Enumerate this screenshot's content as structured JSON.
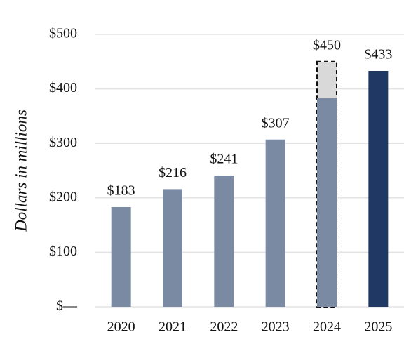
{
  "chart_data": {
    "type": "bar",
    "y_label": "Dollars in millions",
    "categories": [
      "2020",
      "2021",
      "2022",
      "2023",
      "2024",
      "2025"
    ],
    "series": [
      {
        "values": [
          null,
          null,
          null,
          null,
          450,
          null
        ],
        "value_labels": [
          null,
          null,
          null,
          null,
          "$450",
          null
        ],
        "color": "#d9d9d9",
        "dashed": true
      },
      {
        "values": [
          183,
          216,
          241,
          307,
          383,
          433
        ],
        "value_labels": [
          "$183",
          "$216",
          "$241",
          "$307",
          null,
          "$433"
        ],
        "colors": [
          "#7a8aa3",
          "#7a8aa3",
          "#7a8aa3",
          "#7a8aa3",
          "#7a8aa3",
          "#1f3864"
        ]
      }
    ],
    "ylim": [
      0,
      500
    ],
    "yticks": [
      {
        "value": 0,
        "label": "$—"
      },
      {
        "value": 100,
        "label": "$100"
      },
      {
        "value": 200,
        "label": "$200"
      },
      {
        "value": 300,
        "label": "$300"
      },
      {
        "value": 400,
        "label": "$400"
      },
      {
        "value": 500,
        "label": "$500"
      }
    ],
    "grid": true
  }
}
